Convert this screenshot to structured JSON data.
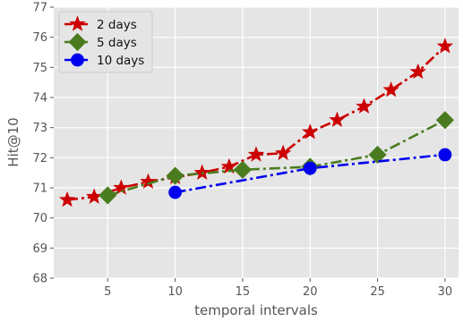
{
  "chart_data": {
    "type": "line",
    "xlabel": "temporal intervals",
    "ylabel": "Hit@10",
    "xlim": [
      1,
      31
    ],
    "ylim": [
      68,
      77
    ],
    "xticks": [
      5,
      10,
      15,
      20,
      25,
      30
    ],
    "yticks": [
      68,
      69,
      70,
      71,
      72,
      73,
      74,
      75,
      76,
      77
    ],
    "grid": true,
    "legend_position": "top-left",
    "series": [
      {
        "name": "2 days",
        "color": "#cc0000",
        "marker": "star",
        "linestyle": "dash-dot",
        "x": [
          2,
          4,
          6,
          8,
          10,
          12,
          14,
          16,
          18,
          20,
          22,
          24,
          26,
          28,
          30
        ],
        "y": [
          70.6,
          70.7,
          71.0,
          71.2,
          71.35,
          71.5,
          71.7,
          72.1,
          72.15,
          72.85,
          73.25,
          73.7,
          74.25,
          74.85,
          75.7
        ]
      },
      {
        "name": "5 days",
        "color": "#4a7c1f",
        "marker": "diamond",
        "linestyle": "dash-dot",
        "x": [
          5,
          10,
          15,
          20,
          25,
          30
        ],
        "y": [
          70.75,
          71.4,
          71.6,
          71.7,
          72.1,
          73.25
        ]
      },
      {
        "name": "10 days",
        "color": "#0000ee",
        "marker": "circle",
        "linestyle": "dash-dot",
        "x": [
          10,
          20,
          30
        ],
        "y": [
          70.85,
          71.65,
          72.1
        ]
      }
    ]
  }
}
